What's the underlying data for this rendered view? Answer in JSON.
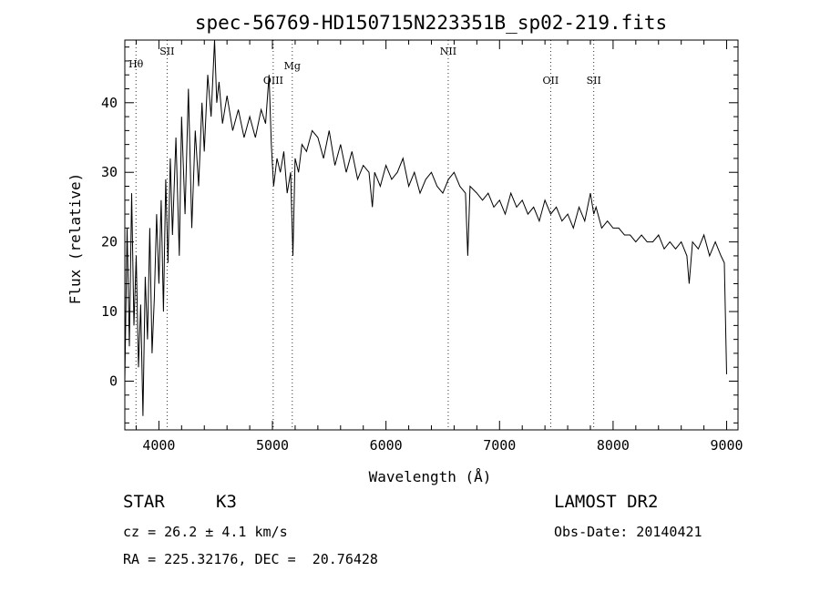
{
  "chart_data": {
    "type": "line",
    "title": "spec-56769-HD150715N223351B_sp02-219.fits",
    "xlabel": "Wavelength (Å)",
    "ylabel": "Flux (relative)",
    "xlim": [
      3700,
      9100
    ],
    "ylim": [
      -7,
      49
    ],
    "xticks": [
      4000,
      5000,
      6000,
      7000,
      8000,
      9000
    ],
    "yticks": [
      0,
      10,
      20,
      30,
      40
    ],
    "grid": false,
    "series": [
      {
        "x": [
          3700,
          3720,
          3740,
          3760,
          3780,
          3800,
          3820,
          3840,
          3860,
          3880,
          3900,
          3920,
          3940,
          3960,
          3980,
          4000,
          4020,
          4040,
          4060,
          4080,
          4100,
          4120,
          4150,
          4180,
          4200,
          4230,
          4260,
          4290,
          4320,
          4350,
          4380,
          4400,
          4430,
          4460,
          4490,
          4510,
          4530,
          4560,
          4600,
          4650,
          4700,
          4750,
          4800,
          4850,
          4900,
          4940,
          4970,
          4990,
          5010,
          5040,
          5070,
          5100,
          5130,
          5160,
          5180,
          5200,
          5230,
          5260,
          5300,
          5350,
          5400,
          5450,
          5500,
          5550,
          5600,
          5650,
          5700,
          5750,
          5800,
          5850,
          5880,
          5900,
          5950,
          6000,
          6050,
          6100,
          6150,
          6200,
          6250,
          6300,
          6350,
          6400,
          6450,
          6500,
          6550,
          6600,
          6650,
          6700,
          6720,
          6740,
          6800,
          6850,
          6900,
          6950,
          7000,
          7050,
          7100,
          7150,
          7200,
          7250,
          7300,
          7350,
          7400,
          7450,
          7500,
          7550,
          7600,
          7650,
          7700,
          7750,
          7800,
          7830,
          7850,
          7900,
          7950,
          8000,
          8050,
          8100,
          8150,
          8200,
          8250,
          8300,
          8350,
          8400,
          8450,
          8500,
          8550,
          8600,
          8650,
          8670,
          8700,
          8750,
          8800,
          8850,
          8900,
          8950,
          8980,
          9000
        ],
        "y": [
          0,
          22,
          5,
          27,
          8,
          18,
          2,
          11,
          -5,
          15,
          6,
          22,
          4,
          12,
          24,
          14,
          26,
          10,
          29,
          17,
          32,
          21,
          35,
          18,
          38,
          24,
          42,
          22,
          36,
          28,
          40,
          33,
          44,
          38,
          49,
          40,
          43,
          37,
          41,
          36,
          39,
          35,
          38,
          35,
          39,
          37,
          44,
          34,
          28,
          32,
          30,
          33,
          27,
          30,
          18,
          32,
          30,
          34,
          33,
          36,
          35,
          32,
          36,
          31,
          34,
          30,
          33,
          29,
          31,
          30,
          25,
          30,
          28,
          31,
          29,
          30,
          32,
          28,
          30,
          27,
          29,
          30,
          28,
          27,
          29,
          30,
          28,
          27,
          18,
          28,
          27,
          26,
          27,
          25,
          26,
          24,
          27,
          25,
          26,
          24,
          25,
          23,
          26,
          24,
          25,
          23,
          24,
          22,
          25,
          23,
          27,
          24,
          25,
          22,
          23,
          22,
          22,
          21,
          21,
          20,
          21,
          20,
          20,
          21,
          19,
          20,
          19,
          20,
          18,
          14,
          20,
          19,
          21,
          18,
          20,
          18,
          17,
          1
        ],
        "color": "#000000"
      }
    ],
    "lines": [
      {
        "label": "Hθ",
        "x": 3798
      },
      {
        "label": "SII",
        "x": 4072
      },
      {
        "label": "OIII",
        "x": 5007
      },
      {
        "label": "Mg",
        "x": 5175
      },
      {
        "label": "NII",
        "x": 6548
      },
      {
        "label": "OII",
        "x": 7450
      },
      {
        "label": "SII",
        "x": 7830
      }
    ]
  },
  "info": {
    "object_type": "STAR",
    "subclass": "K3",
    "survey": "LAMOST DR2",
    "cz": "cz = 26.2 ± 4.1 km/s",
    "obs_date": "Obs-Date: 20140421",
    "coords": "RA = 225.32176, DEC =  20.76428"
  }
}
